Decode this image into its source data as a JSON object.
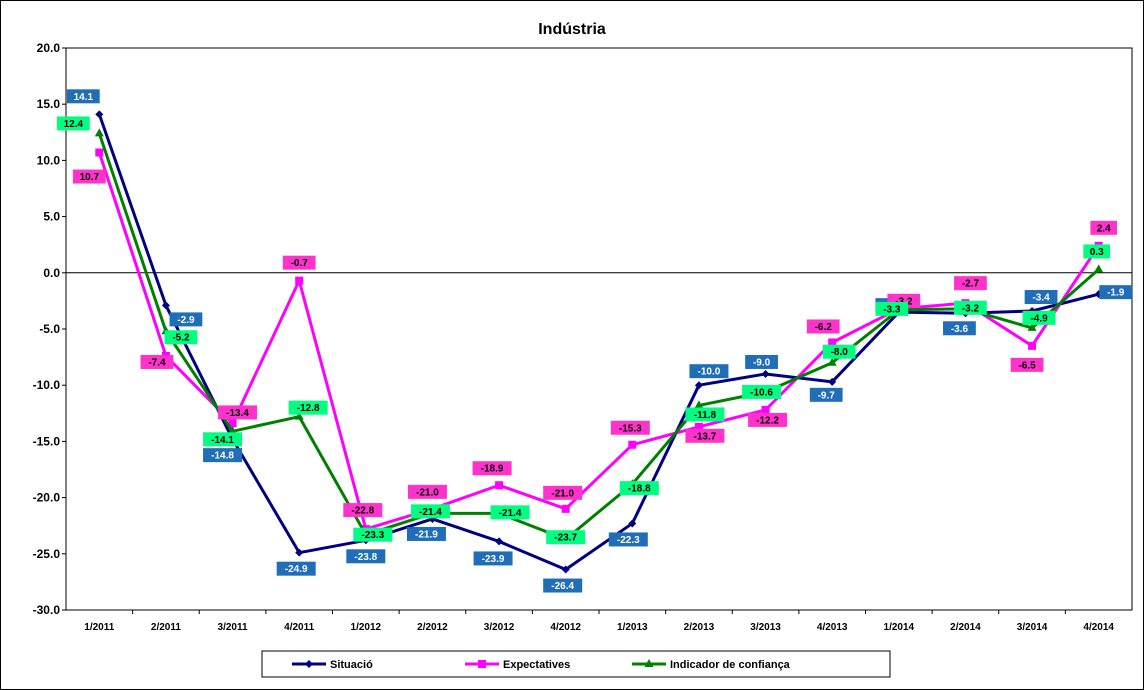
{
  "chart_data": {
    "type": "line",
    "title": "Indústria",
    "xlabel": "",
    "ylabel": "",
    "categories": [
      "1/2011",
      "2/2011",
      "3/2011",
      "4/2011",
      "1/2012",
      "2/2012",
      "3/2012",
      "4/2012",
      "1/2013",
      "2/2013",
      "3/2013",
      "4/2013",
      "1/2014",
      "2/2014",
      "3/2014",
      "4/2014"
    ],
    "ylim": [
      -30,
      20
    ],
    "yticks": [
      20,
      15,
      10,
      5,
      0,
      -5,
      -10,
      -15,
      -20,
      -25,
      -30
    ],
    "ytick_labels": [
      "20.0",
      "15.0",
      "10.0",
      "5.0",
      "0.0",
      "-5.0",
      "-10.0",
      "-15.0",
      "-20.0",
      "-25.0",
      "-30.0"
    ],
    "grid": false,
    "legend_position": "bottom",
    "series": [
      {
        "name": "Situació",
        "color": "#000080",
        "label_color": "#1F6EB7",
        "marker": "diamond",
        "values": [
          14.1,
          -2.9,
          -14.8,
          -24.9,
          -23.8,
          -21.9,
          -23.9,
          -26.4,
          -22.3,
          -10.0,
          -9.0,
          -9.7,
          -3.5,
          -3.6,
          -3.4,
          -1.9
        ],
        "labels": [
          "14.1",
          "-2.9",
          "-14.8",
          "-24.9",
          "-23.8",
          "-21.9",
          "-23.9",
          "-26.4",
          "-22.3",
          "-10.0",
          "-9.0",
          "-9.7",
          "-3.5",
          "-3.6",
          "-3.4",
          "-1.9"
        ]
      },
      {
        "name": "Expectatives",
        "color": "#FF00FF",
        "label_color": "#FF33CC",
        "marker": "square",
        "values": [
          10.7,
          -7.4,
          -13.4,
          -0.7,
          -22.8,
          -21.0,
          -18.9,
          -21.0,
          -15.3,
          -13.7,
          -12.2,
          -6.2,
          -3.2,
          -2.7,
          -6.5,
          2.4
        ],
        "labels": [
          "10.7",
          "-7.4",
          "-13.4",
          "-0.7",
          "-22.8",
          "-21.0",
          "-18.9",
          "-21.0",
          "-15.3",
          "-13.7",
          "-12.2",
          "-6.2",
          "-3.2",
          "-2.7",
          "-6.5",
          "2.4"
        ]
      },
      {
        "name": "Indicador de confiança",
        "color": "#008000",
        "label_color": "#00FF80",
        "marker": "triangle",
        "values": [
          12.4,
          -5.2,
          -14.1,
          -12.8,
          -23.3,
          -21.4,
          -21.4,
          -23.7,
          -18.8,
          -11.8,
          -10.6,
          -8.0,
          -3.3,
          -3.2,
          -4.9,
          0.3
        ],
        "labels": [
          "12.4",
          "-5.2",
          "-14.1",
          "-12.8",
          "-23.3",
          "-21.4",
          "-21.4",
          "-23.7",
          "-18.8",
          "-11.8",
          "-10.6",
          "-8.0",
          "-3.3",
          "-3.2",
          "-4.9",
          "0.3"
        ]
      }
    ]
  }
}
